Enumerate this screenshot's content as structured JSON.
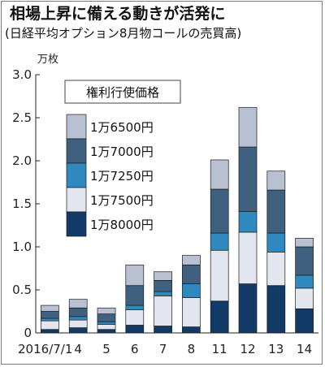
{
  "chart_data": {
    "type": "bar",
    "stacked": true,
    "title": "相場上昇に備える動きが活発に",
    "subtitle": "(日経平均オプション8月物コールの売買高)",
    "unit": "万枚",
    "categories": [
      "2016/7/1",
      "4",
      "5",
      "6",
      "7",
      "8",
      "11",
      "12",
      "13",
      "14"
    ],
    "ylim": [
      0,
      3.0
    ],
    "yticks": [
      "0",
      "0.5",
      "1.0",
      "1.5",
      "2.0",
      "2.5",
      "3.0"
    ],
    "legend_title": "権利行使価格",
    "legend_placement": "top-left",
    "grid": false,
    "series": [
      {
        "name": "1万8000円",
        "color": "#123a66",
        "values": [
          0.04,
          0.06,
          0.04,
          0.09,
          0.08,
          0.07,
          0.37,
          0.57,
          0.55,
          0.28
        ]
      },
      {
        "name": "1万7500円",
        "color": "#e3e6ee",
        "values": [
          0.1,
          0.09,
          0.06,
          0.18,
          0.35,
          0.34,
          0.59,
          0.6,
          0.39,
          0.24
        ]
      },
      {
        "name": "1万7250円",
        "color": "#2f89bf",
        "values": [
          0.03,
          0.04,
          0.03,
          0.05,
          0.05,
          0.16,
          0.2,
          0.24,
          0.22,
          0.15
        ]
      },
      {
        "name": "1万7000円",
        "color": "#3f607f",
        "values": [
          0.08,
          0.1,
          0.09,
          0.23,
          0.13,
          0.22,
          0.51,
          0.75,
          0.5,
          0.33
        ]
      },
      {
        "name": "1万6500円",
        "color": "#b8c0d2",
        "values": [
          0.07,
          0.1,
          0.07,
          0.24,
          0.1,
          0.11,
          0.34,
          0.46,
          0.22,
          0.1
        ]
      }
    ]
  }
}
